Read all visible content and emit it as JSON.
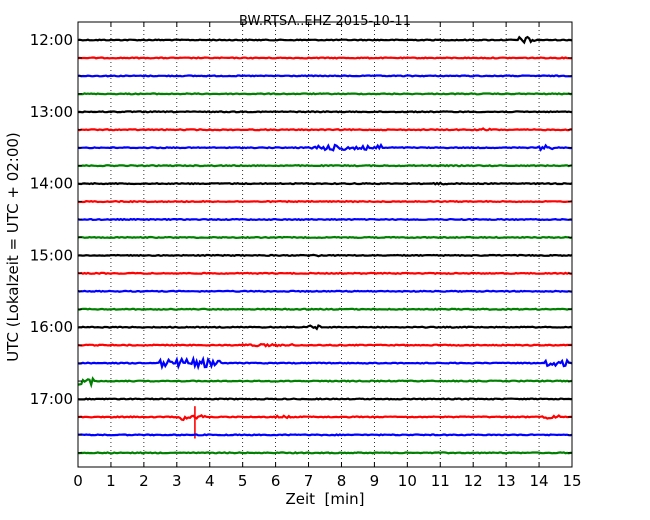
{
  "chart_data": {
    "type": "line",
    "title": "BW.RTSA..EHZ 2015-10-11",
    "xlabel": "Zeit  [min]",
    "ylabel": "UTC (Lokalzeit = UTC + 02:00)",
    "xlim": [
      0,
      15
    ],
    "x_ticks": [
      "0",
      "1",
      "2",
      "3",
      "4",
      "5",
      "6",
      "7",
      "8",
      "9",
      "10",
      "11",
      "12",
      "13",
      "14",
      "15"
    ],
    "grid": "vertical dotted",
    "line_start": "12:00",
    "line_interval_min": 15,
    "lines_count": 24,
    "y_tick_labels": [
      "12:00",
      "13:00",
      "14:00",
      "15:00",
      "16:00",
      "17:00"
    ],
    "series_colors": [
      "#000000",
      "#ff0000",
      "#0000ff",
      "#008000"
    ],
    "events": [
      {
        "line": 0,
        "start_min": 13.4,
        "end_min": 13.9,
        "amp": 0.35
      },
      {
        "line": 5,
        "start_min": 12.3,
        "end_min": 12.6,
        "amp": 0.15
      },
      {
        "line": 6,
        "start_min": 7.1,
        "end_min": 9.2,
        "amp": 0.3
      },
      {
        "line": 6,
        "start_min": 14.0,
        "end_min": 14.4,
        "amp": 0.25
      },
      {
        "line": 8,
        "start_min": 10.8,
        "end_min": 11.2,
        "amp": 0.1
      },
      {
        "line": 12,
        "start_min": 7.0,
        "end_min": 7.4,
        "amp": 0.1
      },
      {
        "line": 16,
        "start_min": 7.0,
        "end_min": 7.4,
        "amp": 0.2
      },
      {
        "line": 17,
        "start_min": 5.0,
        "end_min": 6.5,
        "amp": 0.12
      },
      {
        "line": 18,
        "start_min": 2.5,
        "end_min": 4.3,
        "amp": 0.45
      },
      {
        "line": 18,
        "start_min": 14.2,
        "end_min": 14.9,
        "amp": 0.35
      },
      {
        "line": 19,
        "start_min": 0.0,
        "end_min": 0.5,
        "amp": 0.45
      },
      {
        "line": 21,
        "start_min": 3.1,
        "end_min": 3.9,
        "amp": 0.35
      },
      {
        "line": 21,
        "start_min": 6.0,
        "end_min": 6.4,
        "amp": 0.15
      },
      {
        "line": 21,
        "start_min": 14.1,
        "end_min": 14.6,
        "amp": 0.2
      }
    ],
    "spikes": [
      {
        "line": 21,
        "at_min": 3.55,
        "amp": 1.2
      }
    ]
  }
}
